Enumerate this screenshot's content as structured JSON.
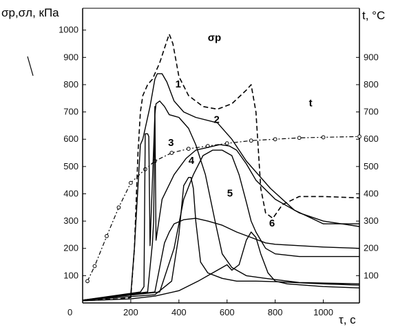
{
  "chart_data": {
    "type": "line",
    "ylabel_left": "σр,σл, кПа",
    "ylabel_right": "t, °C",
    "xlabel": "τ, c",
    "origin_label": "0",
    "xlim": [
      0,
      1150
    ],
    "ylim_left": [
      0,
      1080
    ],
    "ylim_right": [
      0,
      1080
    ],
    "x_ticks": [
      200,
      400,
      600,
      800,
      1000
    ],
    "y_ticks_left": [
      100,
      200,
      300,
      400,
      500,
      600,
      700,
      800,
      900,
      1000
    ],
    "y_ticks_right": [
      100,
      200,
      300,
      400,
      500,
      600,
      700,
      800,
      900
    ],
    "grid": false,
    "series": [
      {
        "name": "σр",
        "style": "dashed",
        "points": [
          [
            0,
            10
          ],
          [
            150,
            15
          ],
          [
            200,
            20
          ],
          [
            215,
            200
          ],
          [
            230,
            550
          ],
          [
            240,
            700
          ],
          [
            250,
            760
          ],
          [
            270,
            800
          ],
          [
            290,
            820
          ],
          [
            320,
            880
          ],
          [
            350,
            960
          ],
          [
            360,
            985
          ],
          [
            375,
            950
          ],
          [
            400,
            830
          ],
          [
            440,
            760
          ],
          [
            500,
            720
          ],
          [
            560,
            710
          ],
          [
            620,
            730
          ],
          [
            680,
            780
          ],
          [
            700,
            800
          ],
          [
            720,
            700
          ],
          [
            740,
            420
          ],
          [
            760,
            330
          ],
          [
            790,
            310
          ],
          [
            830,
            360
          ],
          [
            900,
            390
          ],
          [
            1000,
            390
          ],
          [
            1150,
            385
          ]
        ]
      },
      {
        "name": "t",
        "style": "dashdot-markers",
        "axis": "right",
        "points": [
          [
            20,
            80
          ],
          [
            50,
            135
          ],
          [
            100,
            245
          ],
          [
            150,
            350
          ],
          [
            200,
            440
          ],
          [
            260,
            490
          ],
          [
            300,
            520
          ],
          [
            370,
            550
          ],
          [
            440,
            565
          ],
          [
            520,
            575
          ],
          [
            600,
            585
          ],
          [
            700,
            595
          ],
          [
            800,
            600
          ],
          [
            900,
            605
          ],
          [
            1000,
            607
          ],
          [
            1150,
            610
          ]
        ]
      },
      {
        "name": "1",
        "points": [
          [
            0,
            10
          ],
          [
            200,
            30
          ],
          [
            215,
            200
          ],
          [
            240,
            580
          ],
          [
            250,
            600
          ],
          [
            280,
            720
          ],
          [
            300,
            820
          ],
          [
            310,
            840
          ],
          [
            330,
            840
          ],
          [
            350,
            810
          ],
          [
            380,
            740
          ],
          [
            420,
            700
          ],
          [
            470,
            680
          ],
          [
            560,
            660
          ],
          [
            620,
            600
          ],
          [
            680,
            520
          ],
          [
            780,
            420
          ],
          [
            880,
            340
          ],
          [
            1000,
            290
          ],
          [
            1150,
            290
          ]
        ]
      },
      {
        "name": "2",
        "points": [
          [
            0,
            10
          ],
          [
            240,
            40
          ],
          [
            255,
            60
          ],
          [
            260,
            620
          ],
          [
            270,
            620
          ],
          [
            275,
            610
          ],
          [
            280,
            210
          ],
          [
            300,
            690
          ],
          [
            305,
            730
          ],
          [
            320,
            740
          ],
          [
            340,
            720
          ],
          [
            360,
            690
          ],
          [
            400,
            680
          ],
          [
            440,
            640
          ],
          [
            470,
            580
          ],
          [
            510,
            470
          ],
          [
            550,
            300
          ],
          [
            580,
            180
          ],
          [
            620,
            130
          ],
          [
            680,
            100
          ],
          [
            760,
            90
          ],
          [
            900,
            75
          ],
          [
            1150,
            70
          ]
        ]
      },
      {
        "name": "3",
        "points": [
          [
            0,
            10
          ],
          [
            270,
            40
          ],
          [
            290,
            220
          ],
          [
            295,
            300
          ],
          [
            300,
            720
          ],
          [
            305,
            230
          ],
          [
            330,
            380
          ],
          [
            380,
            470
          ],
          [
            430,
            530
          ],
          [
            470,
            560
          ],
          [
            520,
            570
          ],
          [
            570,
            580
          ],
          [
            610,
            575
          ],
          [
            640,
            560
          ],
          [
            680,
            510
          ],
          [
            720,
            450
          ],
          [
            800,
            380
          ],
          [
            900,
            330
          ],
          [
            1000,
            300
          ],
          [
            1150,
            280
          ]
        ]
      },
      {
        "name": "4",
        "points": [
          [
            0,
            10
          ],
          [
            300,
            30
          ],
          [
            370,
            80
          ],
          [
            400,
            250
          ],
          [
            420,
            430
          ],
          [
            440,
            460
          ],
          [
            450,
            460
          ],
          [
            460,
            420
          ],
          [
            470,
            300
          ],
          [
            490,
            150
          ],
          [
            520,
            110
          ],
          [
            580,
            90
          ],
          [
            640,
            80
          ],
          [
            720,
            80
          ],
          [
            800,
            78
          ],
          [
            1000,
            70
          ],
          [
            1150,
            65
          ]
        ]
      },
      {
        "name": "5",
        "points": [
          [
            0,
            10
          ],
          [
            320,
            40
          ],
          [
            380,
            200
          ],
          [
            420,
            380
          ],
          [
            460,
            470
          ],
          [
            500,
            540
          ],
          [
            540,
            560
          ],
          [
            580,
            560
          ],
          [
            620,
            540
          ],
          [
            650,
            470
          ],
          [
            680,
            370
          ],
          [
            700,
            300
          ],
          [
            720,
            260
          ],
          [
            760,
            200
          ],
          [
            800,
            180
          ],
          [
            900,
            170
          ],
          [
            1000,
            170
          ],
          [
            1150,
            170
          ]
        ]
      },
      {
        "name": "6",
        "points": [
          [
            0,
            10
          ],
          [
            300,
            40
          ],
          [
            340,
            220
          ],
          [
            360,
            260
          ],
          [
            380,
            290
          ],
          [
            420,
            305
          ],
          [
            470,
            310
          ],
          [
            520,
            300
          ],
          [
            580,
            285
          ],
          [
            640,
            260
          ],
          [
            700,
            240
          ],
          [
            760,
            220
          ],
          [
            800,
            215
          ],
          [
            900,
            210
          ],
          [
            1000,
            205
          ],
          [
            1150,
            200
          ]
        ]
      },
      {
        "name": "",
        "points": [
          [
            0,
            8
          ],
          [
            200,
            15
          ],
          [
            300,
            25
          ],
          [
            400,
            45
          ],
          [
            480,
            80
          ],
          [
            540,
            110
          ],
          [
            580,
            130
          ],
          [
            600,
            140
          ],
          [
            620,
            120
          ],
          [
            650,
            140
          ],
          [
            680,
            230
          ],
          [
            700,
            260
          ],
          [
            720,
            240
          ],
          [
            740,
            180
          ],
          [
            770,
            110
          ],
          [
            800,
            80
          ],
          [
            850,
            70
          ],
          [
            1000,
            60
          ],
          [
            1150,
            55
          ]
        ]
      }
    ],
    "annotations": [
      {
        "text": "1",
        "x": 385,
        "y": 790
      },
      {
        "text": "2",
        "x": 545,
        "y": 660
      },
      {
        "text": "3",
        "x": 355,
        "y": 575
      },
      {
        "text": "4",
        "x": 440,
        "y": 510
      },
      {
        "text": "5",
        "x": 600,
        "y": 390
      },
      {
        "text": "6",
        "x": 775,
        "y": 280
      },
      {
        "text": "σр",
        "x": 520,
        "y": 960
      },
      {
        "text": "t",
        "x": 940,
        "y": 720
      }
    ]
  }
}
